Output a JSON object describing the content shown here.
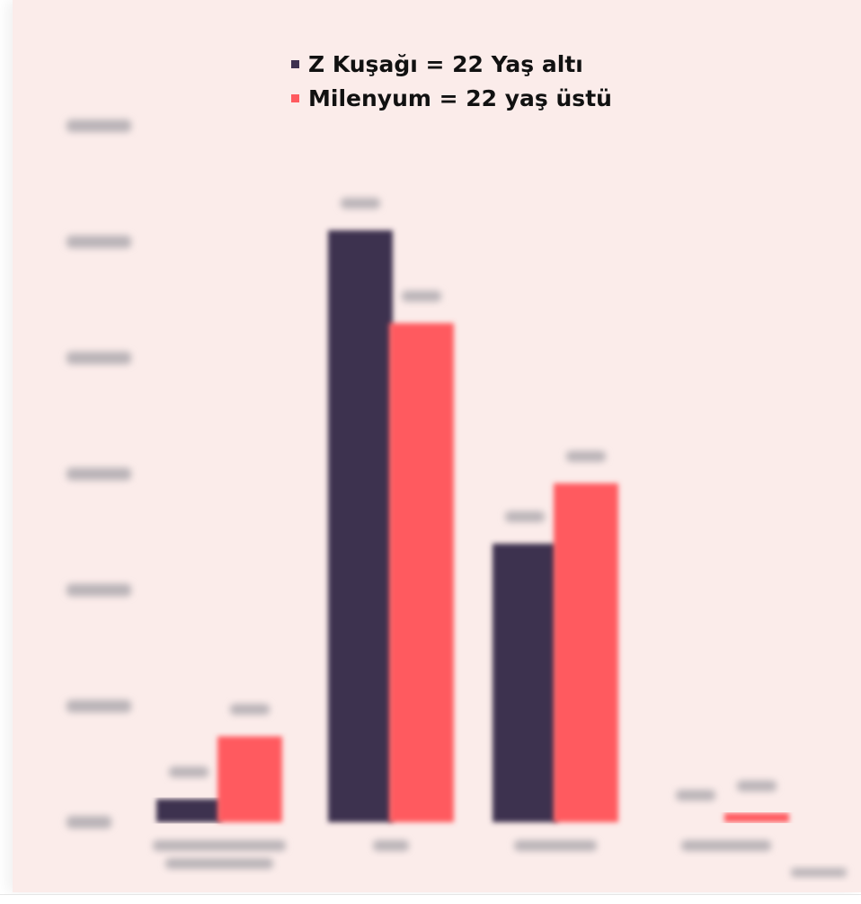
{
  "colors": {
    "background": "#fbecea",
    "series_1": "#3d3250",
    "series_2": "#ff5a5f",
    "blurred_text": "#b9b3b7"
  },
  "chart_data": {
    "type": "bar",
    "legend_position": "top-center",
    "grid": false,
    "ylim": [
      0,
      30
    ],
    "categories": [
      "",
      "",
      "",
      ""
    ],
    "series": [
      {
        "name": "Z Kuşağı = 22 Yaş altı",
        "values": [
          1.0,
          25.5,
          12.0,
          0.0
        ]
      },
      {
        "name": "Milenyum = 22 yaş üstü",
        "values": [
          3.7,
          21.5,
          14.6,
          0.4
        ]
      }
    ]
  }
}
